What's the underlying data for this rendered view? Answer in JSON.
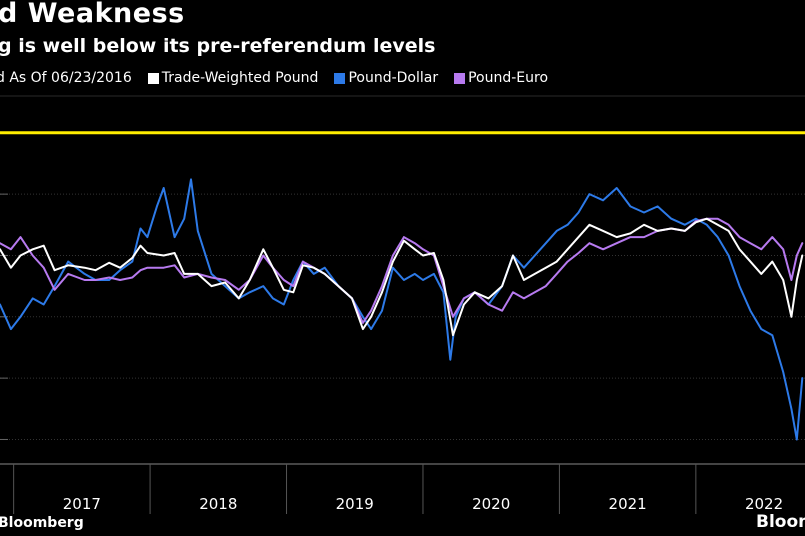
{
  "header": {
    "title": "d Weakness",
    "subtitle": "g is well below its pre-referendum levels"
  },
  "legend": [
    {
      "label": "d As Of 06/23/2016",
      "color": "#ffee00"
    },
    {
      "label": "Trade-Weighted Pound",
      "color": "#ffffff"
    },
    {
      "label": "Pound-Dollar",
      "color": "#2d7ae8"
    },
    {
      "label": "Pound-Euro",
      "color": "#b77af0"
    }
  ],
  "footer": {
    "source": "Bloomberg",
    "logo": "Bloom"
  },
  "chart_data": {
    "type": "line",
    "x_ticks": [
      "2017",
      "2018",
      "2019",
      "2020",
      "2021",
      "2022"
    ],
    "x_range": [
      2016.9,
      2022.8
    ],
    "reference_line": {
      "name": "d As Of 06/23/2016",
      "value": 0
    },
    "y_range": [
      -27,
      3
    ],
    "gridlines": [
      -25,
      -20,
      -15,
      -10,
      -5,
      0
    ],
    "series": [
      {
        "name": "Trade-Weighted Pound",
        "color": "#ffffff",
        "points": [
          [
            2016.9,
            -9.5
          ],
          [
            2016.98,
            -11.0
          ],
          [
            2017.05,
            -10.0
          ],
          [
            2017.14,
            -9.5
          ],
          [
            2017.22,
            -9.2
          ],
          [
            2017.3,
            -11.2
          ],
          [
            2017.4,
            -10.8
          ],
          [
            2017.52,
            -11.0
          ],
          [
            2017.6,
            -11.2
          ],
          [
            2017.7,
            -10.6
          ],
          [
            2017.78,
            -11.0
          ],
          [
            2017.87,
            -10.2
          ],
          [
            2017.93,
            -9.2
          ],
          [
            2017.98,
            -9.8
          ],
          [
            2018.1,
            -10.0
          ],
          [
            2018.18,
            -9.8
          ],
          [
            2018.25,
            -11.5
          ],
          [
            2018.35,
            -11.5
          ],
          [
            2018.45,
            -12.5
          ],
          [
            2018.55,
            -12.2
          ],
          [
            2018.65,
            -13.5
          ],
          [
            2018.73,
            -12.0
          ],
          [
            2018.83,
            -9.5
          ],
          [
            2018.9,
            -11.0
          ],
          [
            2018.98,
            -12.8
          ],
          [
            2019.05,
            -13.0
          ],
          [
            2019.12,
            -10.8
          ],
          [
            2019.2,
            -11.0
          ],
          [
            2019.28,
            -11.5
          ],
          [
            2019.38,
            -12.5
          ],
          [
            2019.48,
            -13.5
          ],
          [
            2019.56,
            -16.0
          ],
          [
            2019.62,
            -15.0
          ],
          [
            2019.7,
            -13.0
          ],
          [
            2019.78,
            -10.5
          ],
          [
            2019.86,
            -8.8
          ],
          [
            2019.94,
            -9.5
          ],
          [
            2020.0,
            -10.0
          ],
          [
            2020.08,
            -9.8
          ],
          [
            2020.15,
            -12.0
          ],
          [
            2020.22,
            -16.5
          ],
          [
            2020.3,
            -14.0
          ],
          [
            2020.38,
            -13.0
          ],
          [
            2020.48,
            -13.5
          ],
          [
            2020.58,
            -12.5
          ],
          [
            2020.66,
            -10.0
          ],
          [
            2020.74,
            -12.0
          ],
          [
            2020.82,
            -11.5
          ],
          [
            2020.9,
            -11.0
          ],
          [
            2020.98,
            -10.5
          ],
          [
            2021.06,
            -9.5
          ],
          [
            2021.14,
            -8.5
          ],
          [
            2021.22,
            -7.5
          ],
          [
            2021.32,
            -8.0
          ],
          [
            2021.42,
            -8.5
          ],
          [
            2021.52,
            -8.2
          ],
          [
            2021.62,
            -7.5
          ],
          [
            2021.72,
            -8.0
          ],
          [
            2021.82,
            -7.8
          ],
          [
            2021.92,
            -8.0
          ],
          [
            2022.0,
            -7.3
          ],
          [
            2022.08,
            -7.0
          ],
          [
            2022.16,
            -7.5
          ],
          [
            2022.24,
            -8.0
          ],
          [
            2022.32,
            -9.5
          ],
          [
            2022.4,
            -10.5
          ],
          [
            2022.48,
            -11.5
          ],
          [
            2022.56,
            -10.5
          ],
          [
            2022.64,
            -12.0
          ],
          [
            2022.7,
            -15.0
          ],
          [
            2022.74,
            -12.0
          ],
          [
            2022.78,
            -10.0
          ]
        ]
      },
      {
        "name": "Pound-Dollar",
        "color": "#2d7ae8",
        "points": [
          [
            2016.9,
            -14.0
          ],
          [
            2016.98,
            -16.0
          ],
          [
            2017.05,
            -15.0
          ],
          [
            2017.14,
            -13.5
          ],
          [
            2017.22,
            -14.0
          ],
          [
            2017.3,
            -12.5
          ],
          [
            2017.4,
            -10.5
          ],
          [
            2017.52,
            -11.5
          ],
          [
            2017.6,
            -12.0
          ],
          [
            2017.7,
            -12.0
          ],
          [
            2017.78,
            -11.2
          ],
          [
            2017.87,
            -10.5
          ],
          [
            2017.93,
            -7.8
          ],
          [
            2017.98,
            -8.5
          ],
          [
            2018.05,
            -6.0
          ],
          [
            2018.1,
            -4.5
          ],
          [
            2018.18,
            -8.5
          ],
          [
            2018.25,
            -7.0
          ],
          [
            2018.3,
            -3.8
          ],
          [
            2018.35,
            -8.0
          ],
          [
            2018.45,
            -11.5
          ],
          [
            2018.55,
            -12.5
          ],
          [
            2018.65,
            -13.5
          ],
          [
            2018.73,
            -13.0
          ],
          [
            2018.83,
            -12.5
          ],
          [
            2018.9,
            -13.5
          ],
          [
            2018.98,
            -14.0
          ],
          [
            2019.05,
            -12.0
          ],
          [
            2019.12,
            -10.5
          ],
          [
            2019.2,
            -11.5
          ],
          [
            2019.28,
            -11.0
          ],
          [
            2019.38,
            -12.5
          ],
          [
            2019.48,
            -13.5
          ],
          [
            2019.56,
            -15.0
          ],
          [
            2019.62,
            -16.0
          ],
          [
            2019.7,
            -14.5
          ],
          [
            2019.78,
            -11.0
          ],
          [
            2019.86,
            -12.0
          ],
          [
            2019.94,
            -11.5
          ],
          [
            2020.0,
            -12.0
          ],
          [
            2020.08,
            -11.5
          ],
          [
            2020.15,
            -13.0
          ],
          [
            2020.2,
            -18.5
          ],
          [
            2020.24,
            -15.0
          ],
          [
            2020.3,
            -13.5
          ],
          [
            2020.38,
            -13.0
          ],
          [
            2020.48,
            -14.0
          ],
          [
            2020.58,
            -12.5
          ],
          [
            2020.66,
            -10.0
          ],
          [
            2020.74,
            -11.0
          ],
          [
            2020.82,
            -10.0
          ],
          [
            2020.9,
            -9.0
          ],
          [
            2020.98,
            -8.0
          ],
          [
            2021.06,
            -7.5
          ],
          [
            2021.14,
            -6.5
          ],
          [
            2021.22,
            -5.0
          ],
          [
            2021.32,
            -5.5
          ],
          [
            2021.42,
            -4.5
          ],
          [
            2021.52,
            -6.0
          ],
          [
            2021.62,
            -6.5
          ],
          [
            2021.72,
            -6.0
          ],
          [
            2021.82,
            -7.0
          ],
          [
            2021.92,
            -7.5
          ],
          [
            2022.0,
            -7.0
          ],
          [
            2022.08,
            -7.5
          ],
          [
            2022.16,
            -8.5
          ],
          [
            2022.24,
            -10.0
          ],
          [
            2022.32,
            -12.5
          ],
          [
            2022.4,
            -14.5
          ],
          [
            2022.48,
            -16.0
          ],
          [
            2022.56,
            -16.5
          ],
          [
            2022.64,
            -19.5
          ],
          [
            2022.7,
            -22.5
          ],
          [
            2022.74,
            -25.0
          ],
          [
            2022.78,
            -20.0
          ]
        ]
      },
      {
        "name": "Pound-Euro",
        "color": "#b77af0",
        "points": [
          [
            2016.9,
            -9.0
          ],
          [
            2016.98,
            -9.5
          ],
          [
            2017.05,
            -8.5
          ],
          [
            2017.14,
            -10.0
          ],
          [
            2017.22,
            -11.0
          ],
          [
            2017.3,
            -12.8
          ],
          [
            2017.4,
            -11.5
          ],
          [
            2017.52,
            -12.0
          ],
          [
            2017.6,
            -12.0
          ],
          [
            2017.7,
            -11.8
          ],
          [
            2017.78,
            -12.0
          ],
          [
            2017.87,
            -11.8
          ],
          [
            2017.93,
            -11.2
          ],
          [
            2017.98,
            -11.0
          ],
          [
            2018.1,
            -11.0
          ],
          [
            2018.18,
            -10.8
          ],
          [
            2018.25,
            -11.8
          ],
          [
            2018.35,
            -11.5
          ],
          [
            2018.45,
            -11.8
          ],
          [
            2018.55,
            -12.0
          ],
          [
            2018.65,
            -12.8
          ],
          [
            2018.73,
            -12.0
          ],
          [
            2018.83,
            -10.0
          ],
          [
            2018.9,
            -11.0
          ],
          [
            2018.98,
            -12.0
          ],
          [
            2019.05,
            -12.5
          ],
          [
            2019.12,
            -10.5
          ],
          [
            2019.2,
            -11.0
          ],
          [
            2019.28,
            -11.5
          ],
          [
            2019.38,
            -12.5
          ],
          [
            2019.48,
            -13.5
          ],
          [
            2019.56,
            -15.5
          ],
          [
            2019.62,
            -14.5
          ],
          [
            2019.7,
            -12.5
          ],
          [
            2019.78,
            -10.0
          ],
          [
            2019.86,
            -8.5
          ],
          [
            2019.94,
            -9.0
          ],
          [
            2020.0,
            -9.5
          ],
          [
            2020.08,
            -10.0
          ],
          [
            2020.15,
            -12.5
          ],
          [
            2020.22,
            -15.0
          ],
          [
            2020.3,
            -13.5
          ],
          [
            2020.38,
            -13.0
          ],
          [
            2020.48,
            -14.0
          ],
          [
            2020.58,
            -14.5
          ],
          [
            2020.66,
            -13.0
          ],
          [
            2020.74,
            -13.5
          ],
          [
            2020.82,
            -13.0
          ],
          [
            2020.9,
            -12.5
          ],
          [
            2020.98,
            -11.5
          ],
          [
            2021.06,
            -10.5
          ],
          [
            2021.14,
            -9.8
          ],
          [
            2021.22,
            -9.0
          ],
          [
            2021.32,
            -9.5
          ],
          [
            2021.42,
            -9.0
          ],
          [
            2021.52,
            -8.5
          ],
          [
            2021.62,
            -8.5
          ],
          [
            2021.72,
            -8.0
          ],
          [
            2021.82,
            -7.8
          ],
          [
            2021.92,
            -8.0
          ],
          [
            2022.0,
            -7.2
          ],
          [
            2022.08,
            -7.0
          ],
          [
            2022.16,
            -7.0
          ],
          [
            2022.24,
            -7.5
          ],
          [
            2022.32,
            -8.5
          ],
          [
            2022.4,
            -9.0
          ],
          [
            2022.48,
            -9.5
          ],
          [
            2022.56,
            -8.5
          ],
          [
            2022.64,
            -9.5
          ],
          [
            2022.7,
            -12.0
          ],
          [
            2022.74,
            -10.0
          ],
          [
            2022.78,
            -9.0
          ]
        ]
      }
    ]
  }
}
